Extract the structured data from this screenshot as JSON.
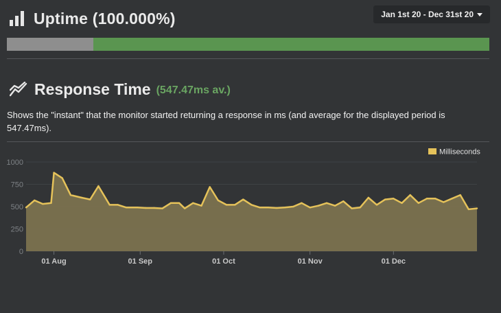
{
  "uptime": {
    "title": "Uptime (100.000%)",
    "date_range": "Jan 1st 20 - Dec 31st 20",
    "bar_colors": {
      "no_data": "#8e8e8e",
      "up": "#5a9550"
    }
  },
  "response": {
    "title": "Response Time",
    "average": "(547.47ms av.)",
    "description": "Shows the \"instant\" that the monitor started returning a response in ms (and average for the displayed period is 547.47ms).",
    "icon": "line-chart-icon"
  },
  "chart_data": {
    "type": "area",
    "ylim": [
      0,
      1000
    ],
    "y_ticks": [
      "0",
      "250",
      "500",
      "750",
      "1000"
    ],
    "x_ticks": [
      "01 Aug",
      "01 Sep",
      "01 Oct",
      "01 Nov",
      "01 Dec"
    ],
    "legend": "Milliseconds",
    "legend_placement": "top-right",
    "grid": true,
    "colors": {
      "line": "#e5c25a",
      "fill": "#7e7450"
    },
    "series": [
      {
        "name": "Milliseconds",
        "x": [
          "2020-07-22",
          "2020-07-25",
          "2020-07-28",
          "2020-07-31",
          "2020-08-01",
          "2020-08-04",
          "2020-08-07",
          "2020-08-11",
          "2020-08-14",
          "2020-08-17",
          "2020-08-21",
          "2020-08-24",
          "2020-08-27",
          "2020-08-31",
          "2020-09-03",
          "2020-09-06",
          "2020-09-09",
          "2020-09-12",
          "2020-09-15",
          "2020-09-17",
          "2020-09-20",
          "2020-09-23",
          "2020-09-26",
          "2020-09-29",
          "2020-10-02",
          "2020-10-05",
          "2020-10-08",
          "2020-10-11",
          "2020-10-14",
          "2020-10-17",
          "2020-10-20",
          "2020-10-23",
          "2020-10-26",
          "2020-10-29",
          "2020-11-01",
          "2020-11-04",
          "2020-11-07",
          "2020-11-10",
          "2020-11-13",
          "2020-11-16",
          "2020-11-19",
          "2020-11-22",
          "2020-11-25",
          "2020-11-28",
          "2020-12-01",
          "2020-12-04",
          "2020-12-07",
          "2020-12-10",
          "2020-12-13",
          "2020-12-16",
          "2020-12-19",
          "2020-12-22",
          "2020-12-25",
          "2020-12-28",
          "2020-12-31"
        ],
        "values": [
          490,
          570,
          530,
          540,
          880,
          820,
          630,
          600,
          580,
          730,
          520,
          520,
          490,
          490,
          485,
          485,
          480,
          540,
          540,
          480,
          540,
          510,
          720,
          570,
          520,
          520,
          580,
          520,
          490,
          490,
          485,
          490,
          500,
          540,
          490,
          510,
          540,
          510,
          560,
          480,
          490,
          600,
          520,
          580,
          590,
          540,
          630,
          540,
          590,
          590,
          550,
          590,
          630,
          470,
          480
        ]
      }
    ]
  }
}
